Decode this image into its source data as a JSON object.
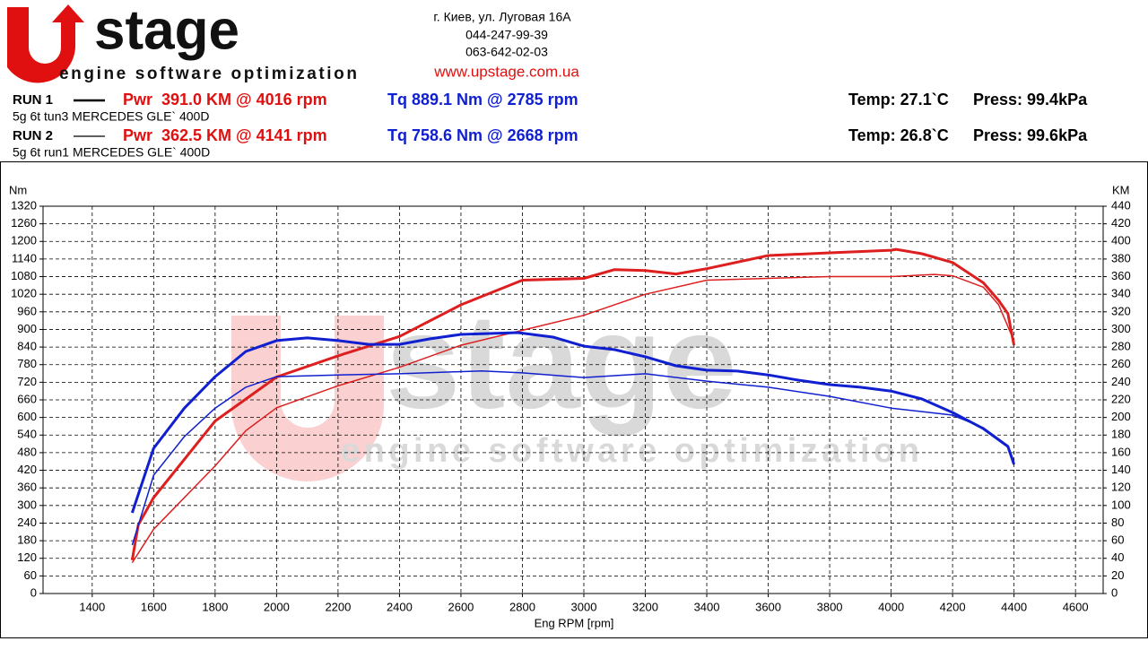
{
  "header": {
    "logo": "stage",
    "slogan": "engine software optimization",
    "address": [
      "г. Киев, ул. Луговая 16А",
      "044-247-99-39",
      "063-642-02-03"
    ],
    "website": "www.upstage.com.ua",
    "runs": [
      {
        "name": "RUN 1",
        "power": "Pwr  391.0 KM @ 4016 rpm",
        "torque": "Tq 889.1 Nm @ 2785 rpm",
        "temp": "Temp: 27.1`C",
        "press": "Press: 99.4kPa",
        "car": "5g 6t tun3 MERCEDES GLE` 400D"
      },
      {
        "name": "RUN 2",
        "power": "Pwr  362.5 KM @ 4141 rpm",
        "torque": "Tq 758.6 Nm @ 2668 rpm",
        "temp": "Temp: 26.8`C",
        "press": "Press: 99.6kPa",
        "car": "5g 6t run1 MERCEDES GLE` 400D"
      }
    ]
  },
  "chart_data": {
    "type": "line",
    "xlabel": "Eng RPM [rpm]",
    "ylabel": "Nm",
    "y2label": "KM",
    "xlim": [
      1240,
      4690
    ],
    "ylim": [
      0,
      1320
    ],
    "y2lim": [
      0,
      440
    ],
    "xticks": [
      1400,
      1600,
      1800,
      2000,
      2200,
      2400,
      2600,
      2800,
      3000,
      3200,
      3400,
      3600,
      3800,
      4000,
      4200,
      4400,
      4600
    ],
    "yticks": [
      0,
      60,
      120,
      180,
      240,
      300,
      360,
      420,
      480,
      540,
      600,
      660,
      720,
      780,
      840,
      900,
      960,
      1020,
      1080,
      1140,
      1200,
      1260,
      1320
    ],
    "y2ticks": [
      0,
      20,
      40,
      60,
      80,
      100,
      120,
      140,
      160,
      180,
      200,
      220,
      240,
      260,
      280,
      300,
      320,
      340,
      360,
      380,
      400,
      420,
      440
    ],
    "grid": true,
    "series": [
      {
        "color": "#dd1f1f",
        "width": 3,
        "axis": "y2",
        "x": [
          1530,
          1550,
          1600,
          1800,
          2000,
          2200,
          2400,
          2600,
          2800,
          3000,
          3100,
          3200,
          3300,
          3400,
          3600,
          3800,
          4000,
          4016,
          4100,
          4200,
          4300,
          4350,
          4380,
          4400
        ],
        "values": [
          38,
          78,
          109,
          196,
          246,
          270,
          292,
          328,
          356,
          358,
          368,
          367,
          363,
          369,
          384,
          387,
          390,
          391,
          386,
          376,
          353,
          333,
          318,
          282
        ]
      },
      {
        "color": "#dd1f1f",
        "width": 1.5,
        "axis": "y2",
        "x": [
          1530,
          1600,
          1800,
          1900,
          2000,
          2200,
          2400,
          2600,
          2800,
          3000,
          3200,
          3400,
          3600,
          3800,
          4000,
          4141,
          4200,
          4300,
          4350,
          4400
        ],
        "values": [
          35,
          73,
          145,
          185,
          211,
          236,
          257,
          282,
          299,
          316,
          340,
          356,
          358,
          360,
          360,
          362.5,
          361,
          348,
          328,
          287
        ]
      },
      {
        "color": "#1020d0",
        "width": 3,
        "x": [
          1530,
          1600,
          1700,
          1800,
          1900,
          2000,
          2100,
          2200,
          2300,
          2400,
          2500,
          2600,
          2785,
          2900,
          3000,
          3100,
          3200,
          3300,
          3400,
          3500,
          3600,
          3700,
          3800,
          3900,
          4000,
          4100,
          4200,
          4300,
          4380,
          4400
        ],
        "values": [
          275,
          495,
          632,
          739,
          825,
          862,
          871,
          862,
          849,
          849,
          868,
          883,
          889.1,
          874,
          843,
          831,
          807,
          776,
          761,
          758,
          745,
          727,
          712,
          703,
          690,
          663,
          617,
          562,
          501,
          440
        ]
      },
      {
        "color": "#1020d0",
        "width": 1.5,
        "x": [
          1530,
          1600,
          1700,
          1800,
          1900,
          2000,
          2200,
          2400,
          2668,
          2800,
          3000,
          3200,
          3400,
          3600,
          3800,
          4000,
          4200,
          4300,
          4380,
          4400
        ],
        "values": [
          165,
          403,
          535,
          632,
          703,
          739,
          745,
          749,
          758.6,
          752,
          736,
          749,
          724,
          703,
          672,
          632,
          608,
          565,
          504,
          449
        ]
      }
    ]
  }
}
